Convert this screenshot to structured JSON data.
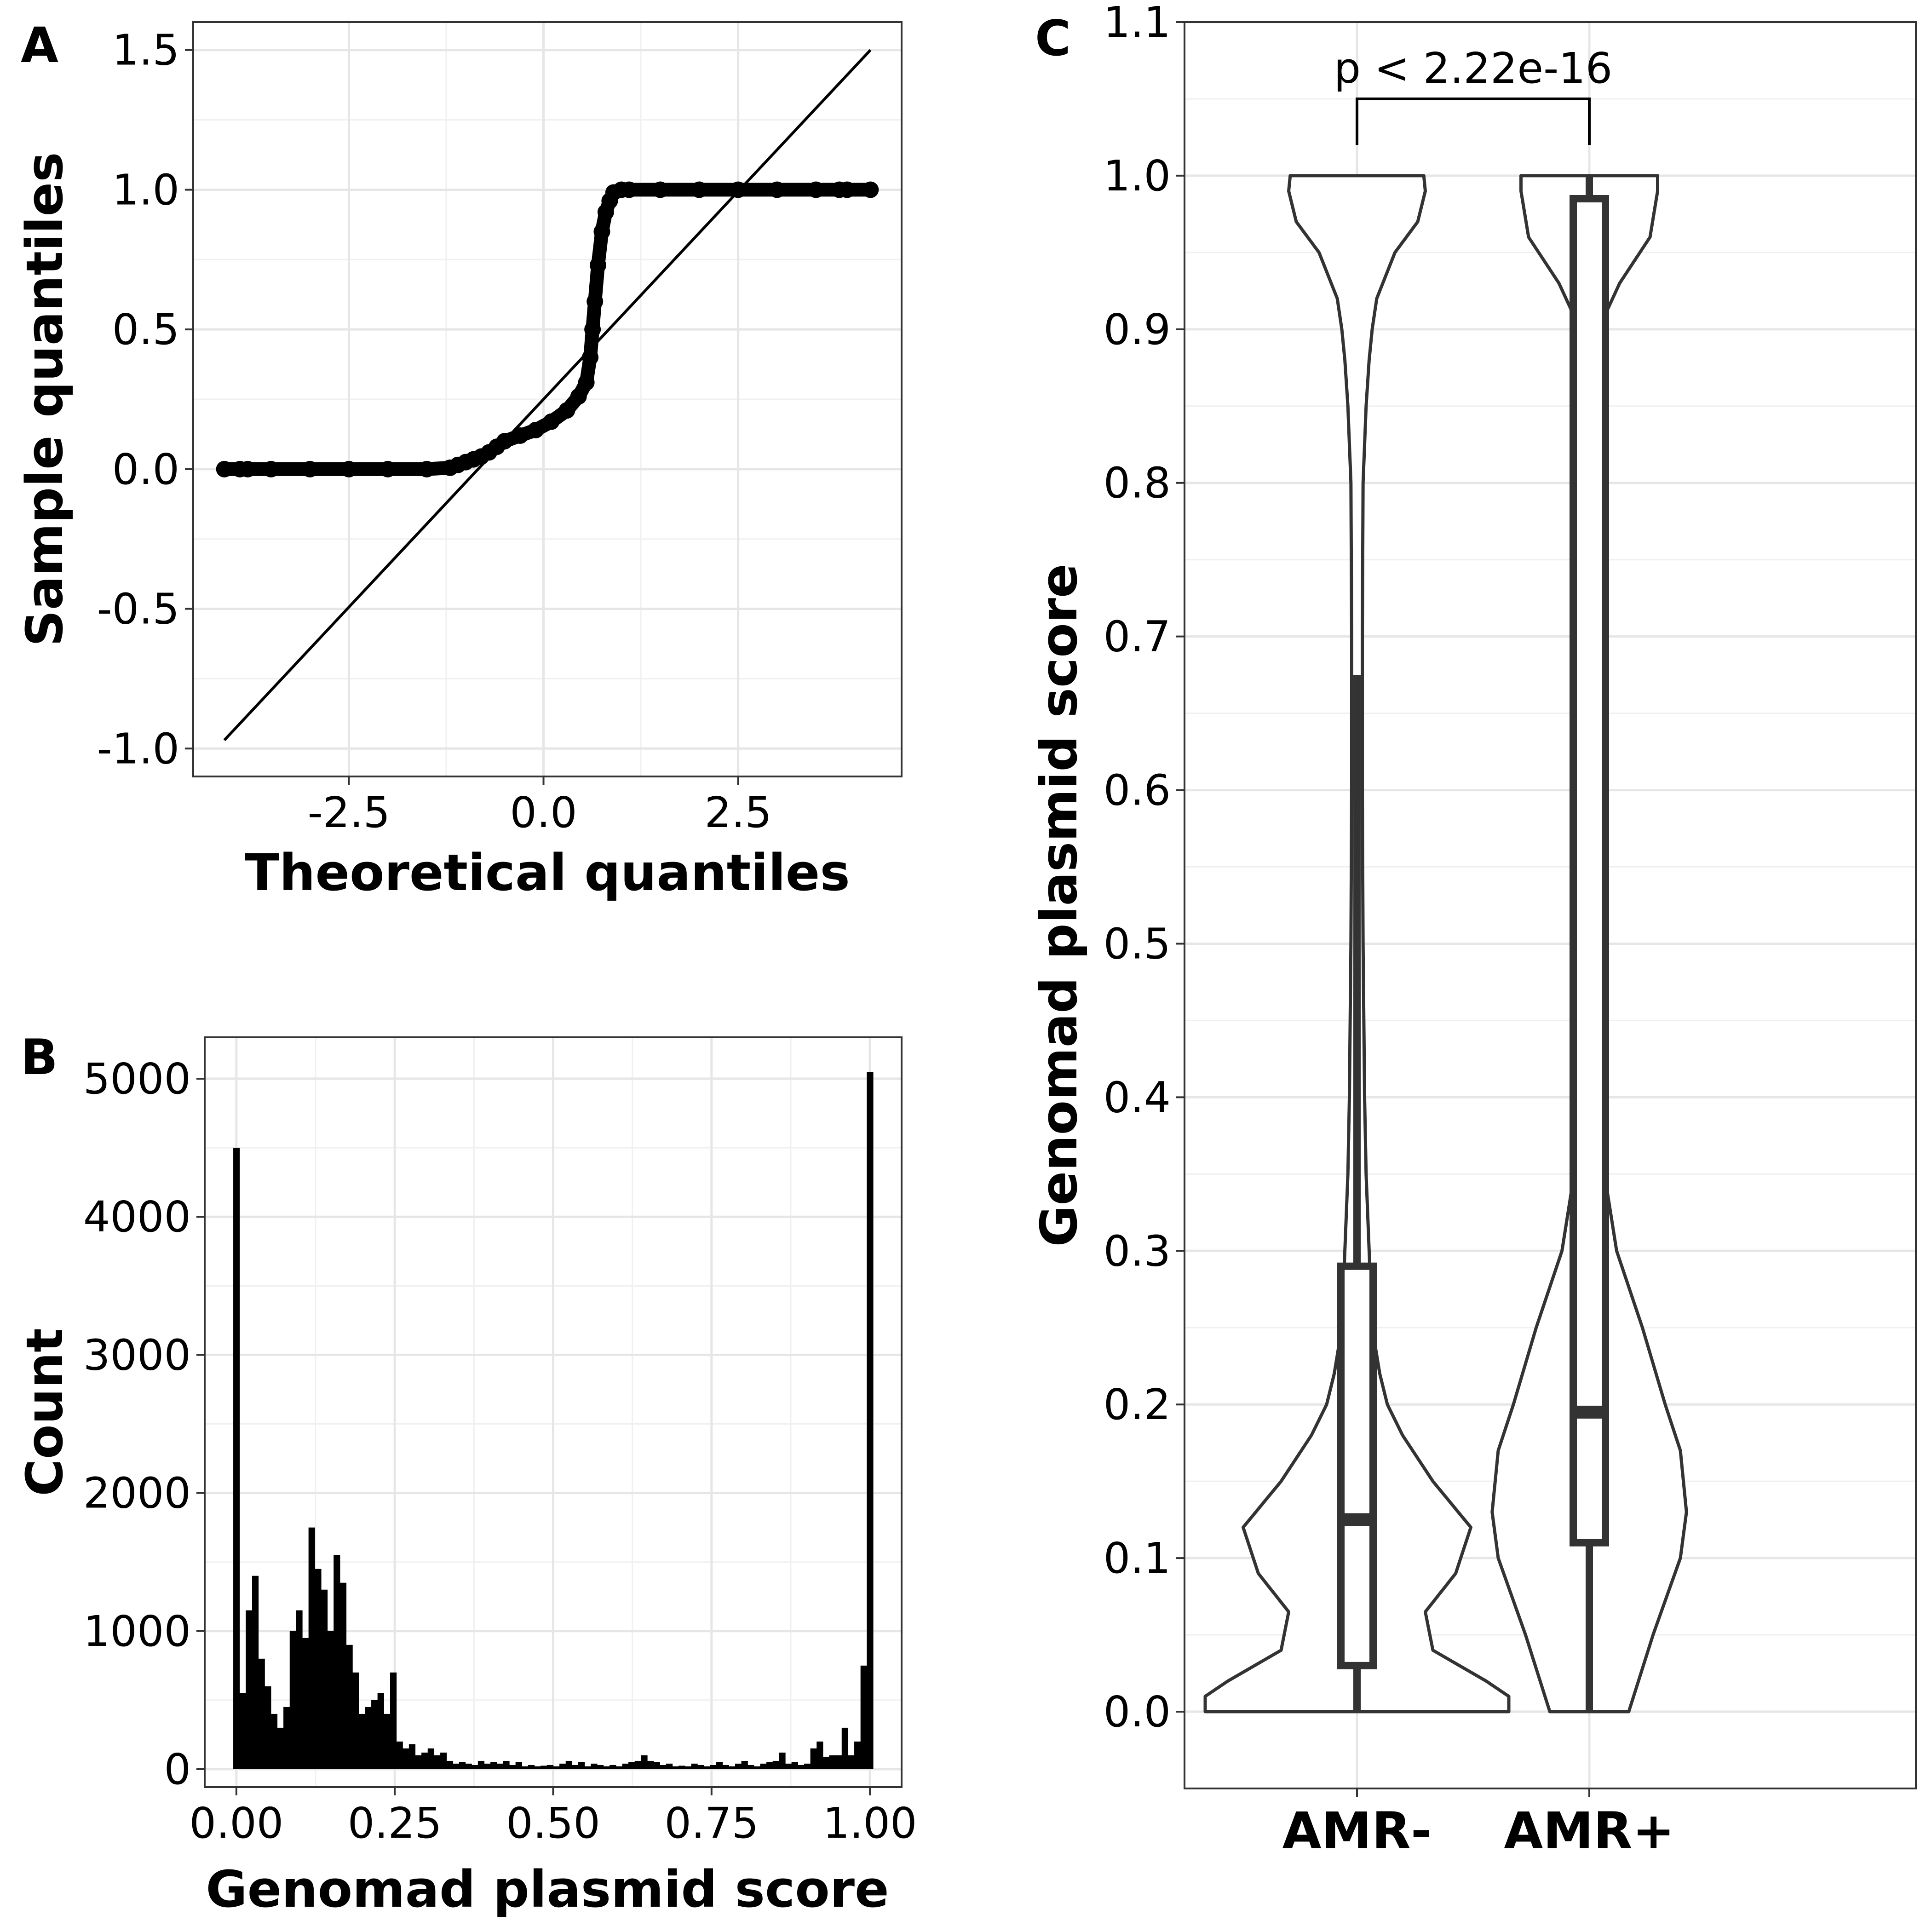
{
  "chart_data": [
    {
      "panel": "A",
      "type": "scatter",
      "title": "",
      "xlabel": "Theoretical quantiles",
      "ylabel": "Sample quantiles",
      "xlim": [
        -4.5,
        4.6
      ],
      "ylim": [
        -1.1,
        1.6
      ],
      "x_ticks": [
        "-2.5",
        "0.0",
        "2.5"
      ],
      "x_tick_values": [
        -2.5,
        0.0,
        2.5
      ],
      "y_ticks": [
        "-1.0",
        "-0.5",
        "0.0",
        "0.5",
        "1.0",
        "1.5"
      ],
      "y_tick_values": [
        -1.0,
        -0.5,
        0.0,
        0.5,
        1.0,
        1.5
      ],
      "grid": true,
      "reference_line": {
        "x": [
          -4.1,
          4.2
        ],
        "y": [
          -0.97,
          1.5
        ]
      },
      "points": {
        "x": [
          -4.1,
          -3.9,
          -3.8,
          -3.5,
          -3.0,
          -2.5,
          -2.0,
          -1.5,
          -1.2,
          -1.1,
          -1.0,
          -0.9,
          -0.8,
          -0.7,
          -0.6,
          -0.5,
          -0.3,
          -0.1,
          0.1,
          0.3,
          0.45,
          0.55,
          0.6,
          0.63,
          0.66,
          0.7,
          0.75,
          0.8,
          0.85,
          0.9,
          1.0,
          1.1,
          1.5,
          2.0,
          2.5,
          3.0,
          3.5,
          3.8,
          3.9,
          4.2
        ],
        "y": [
          0.0,
          0.0,
          0.0,
          0.0,
          0.0,
          0.0,
          0.0,
          0.0,
          0.005,
          0.015,
          0.025,
          0.035,
          0.045,
          0.06,
          0.08,
          0.1,
          0.12,
          0.14,
          0.17,
          0.21,
          0.26,
          0.31,
          0.4,
          0.5,
          0.6,
          0.73,
          0.85,
          0.92,
          0.96,
          0.99,
          1.0,
          1.0,
          1.0,
          1.0,
          1.0,
          1.0,
          1.0,
          1.0,
          1.0,
          1.0
        ]
      }
    },
    {
      "panel": "B",
      "type": "bar",
      "title": "",
      "xlabel": "Genomad plasmid score",
      "ylabel": "Count",
      "xlim": [
        -0.05,
        1.05
      ],
      "ylim": [
        -130,
        5300
      ],
      "x_ticks": [
        "0.00",
        "0.25",
        "0.50",
        "0.75",
        "1.00"
      ],
      "x_tick_values": [
        0.0,
        0.25,
        0.5,
        0.75,
        1.0
      ],
      "y_ticks": [
        "0",
        "1000",
        "2000",
        "3000",
        "4000",
        "5000"
      ],
      "y_tick_values": [
        0,
        1000,
        2000,
        3000,
        4000,
        5000
      ],
      "grid": true,
      "bin_width": 0.01,
      "bin_start": 0.0,
      "values": [
        4500,
        550,
        1150,
        1400,
        800,
        600,
        400,
        300,
        450,
        1000,
        1150,
        950,
        1750,
        1450,
        1300,
        1000,
        1550,
        1350,
        900,
        700,
        400,
        450,
        500,
        550,
        400,
        700,
        200,
        150,
        180,
        100,
        120,
        150,
        100,
        120,
        60,
        40,
        50,
        40,
        30,
        60,
        40,
        50,
        40,
        60,
        30,
        50,
        20,
        30,
        20,
        25,
        30,
        20,
        40,
        60,
        30,
        50,
        20,
        40,
        30,
        20,
        30,
        20,
        40,
        50,
        60,
        100,
        60,
        50,
        30,
        40,
        20,
        25,
        20,
        40,
        30,
        20,
        30,
        50,
        30,
        20,
        40,
        60,
        30,
        20,
        40,
        50,
        60,
        120,
        40,
        50,
        30,
        40,
        150,
        200,
        90,
        100,
        100,
        300,
        100,
        200,
        750,
        5050
      ]
    },
    {
      "panel": "C",
      "type": "violin",
      "title": "",
      "xlabel": "",
      "ylabel": "Genomad plasmid score",
      "ylim": [
        -0.05,
        1.1
      ],
      "y_ticks": [
        "0.0",
        "0.1",
        "0.2",
        "0.3",
        "0.4",
        "0.5",
        "0.6",
        "0.7",
        "0.8",
        "0.9",
        "1.0",
        "1.1"
      ],
      "y_tick_values": [
        0.0,
        0.1,
        0.2,
        0.3,
        0.4,
        0.5,
        0.6,
        0.7,
        0.8,
        0.9,
        1.0,
        1.1
      ],
      "categories": [
        "AMR-",
        "AMR+"
      ],
      "grid": true,
      "annotation": {
        "text": "p < 2.22e-16",
        "between": [
          "AMR-",
          "AMR+"
        ],
        "y": 1.05
      },
      "boxes": [
        {
          "category": "AMR-",
          "min": 0.0,
          "q1": 0.03,
          "median": 0.125,
          "q3": 0.29,
          "whisker_high": 0.675
        },
        {
          "category": "AMR+",
          "min": 0.0,
          "q1": 0.11,
          "median": 0.195,
          "q3": 0.985,
          "whisker_high": 1.0
        }
      ],
      "violins": [
        {
          "category": "AMR-",
          "y": [
            0.0,
            0.01,
            0.02,
            0.04,
            0.065,
            0.09,
            0.12,
            0.15,
            0.18,
            0.2,
            0.22,
            0.25,
            0.3,
            0.35,
            0.4,
            0.5,
            0.6,
            0.7,
            0.8,
            0.85,
            0.88,
            0.9,
            0.92,
            0.95,
            0.97,
            0.99,
            1.0
          ],
          "half_width": [
            1.0,
            1.0,
            0.85,
            0.5,
            0.45,
            0.65,
            0.75,
            0.5,
            0.3,
            0.2,
            0.15,
            0.1,
            0.08,
            0.06,
            0.05,
            0.04,
            0.035,
            0.035,
            0.04,
            0.06,
            0.08,
            0.1,
            0.13,
            0.25,
            0.4,
            0.45,
            0.44
          ]
        },
        {
          "category": "AMR+",
          "y": [
            0.0,
            0.05,
            0.1,
            0.13,
            0.17,
            0.2,
            0.25,
            0.3,
            0.35,
            0.4,
            0.5,
            0.6,
            0.7,
            0.8,
            0.86,
            0.9,
            0.93,
            0.96,
            0.99,
            1.0
          ],
          "half_width": [
            0.26,
            0.42,
            0.6,
            0.64,
            0.6,
            0.5,
            0.35,
            0.18,
            0.1,
            0.07,
            0.04,
            0.03,
            0.02,
            0.02,
            0.03,
            0.06,
            0.2,
            0.4,
            0.45,
            0.45
          ]
        }
      ]
    }
  ]
}
